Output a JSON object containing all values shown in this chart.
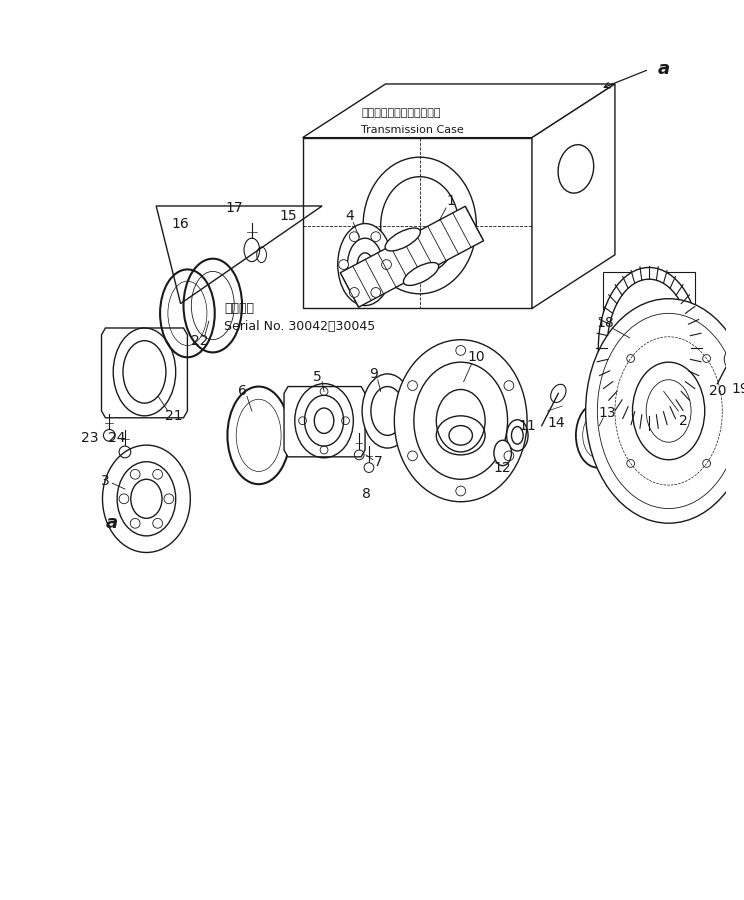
{
  "bg_color": "#ffffff",
  "lc": "#1a1a1a",
  "fig_w": 7.44,
  "fig_h": 9.0,
  "dpi": 100,
  "trans_jp": "トランスミッションケース",
  "trans_en": "Transmission Case",
  "serial_jp": "適用号機",
  "serial_no": "Serial No. 30042～30045"
}
